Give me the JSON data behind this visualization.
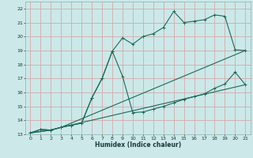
{
  "xlabel": "Humidex (Indice chaleur)",
  "bg_color": "#cce8e8",
  "grid_color": "#d4aaaa",
  "line_color": "#1a6b5a",
  "xlim": [
    -0.5,
    21.5
  ],
  "ylim": [
    13,
    22.5
  ],
  "xticks": [
    0,
    1,
    2,
    3,
    4,
    5,
    6,
    7,
    8,
    9,
    10,
    11,
    12,
    13,
    14,
    15,
    16,
    17,
    18,
    19,
    20,
    21
  ],
  "yticks": [
    13,
    14,
    15,
    16,
    17,
    18,
    19,
    20,
    21,
    22
  ],
  "line1_x": [
    0,
    1,
    2,
    3,
    4,
    5,
    6,
    7,
    8,
    9,
    10,
    11,
    12,
    13,
    14,
    15,
    16,
    17,
    18,
    19,
    20,
    21
  ],
  "line1_y": [
    13.1,
    13.35,
    13.3,
    13.5,
    13.65,
    13.8,
    15.6,
    17.0,
    18.95,
    19.9,
    19.45,
    20.0,
    20.2,
    20.65,
    21.8,
    21.0,
    21.1,
    21.2,
    21.55,
    21.45,
    19.05,
    19.0
  ],
  "line2_x": [
    0,
    1,
    2,
    3,
    4,
    5,
    6,
    7,
    8,
    9,
    10,
    11,
    12,
    13,
    14,
    15,
    16,
    17,
    18,
    19,
    20,
    21
  ],
  "line2_y": [
    13.1,
    13.35,
    13.3,
    13.5,
    13.65,
    13.8,
    15.6,
    17.0,
    18.95,
    17.15,
    14.55,
    14.6,
    14.8,
    15.0,
    15.25,
    15.5,
    15.7,
    15.9,
    16.3,
    16.6,
    17.45,
    16.55
  ],
  "line3_x": [
    0,
    2,
    3,
    21
  ],
  "line3_y": [
    13.1,
    13.3,
    13.5,
    19.0
  ],
  "line4_x": [
    0,
    2,
    3,
    21
  ],
  "line4_y": [
    13.1,
    13.3,
    13.5,
    16.55
  ]
}
